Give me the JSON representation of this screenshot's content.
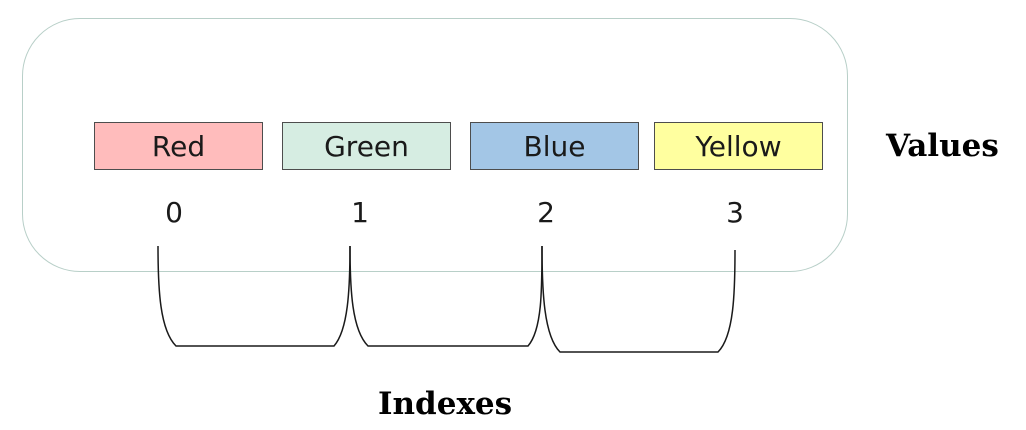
{
  "diagram": {
    "cells": [
      {
        "value": "Red",
        "color": "#ffbcbc"
      },
      {
        "value": "Green",
        "color": "#d6ede2"
      },
      {
        "value": "Blue",
        "color": "#a3c6e6"
      },
      {
        "value": "Yellow",
        "color": "#ffff9f"
      }
    ],
    "indexes": [
      "0",
      "1",
      "2",
      "3"
    ],
    "values_label": "Values",
    "indexes_label": "Indexes"
  }
}
